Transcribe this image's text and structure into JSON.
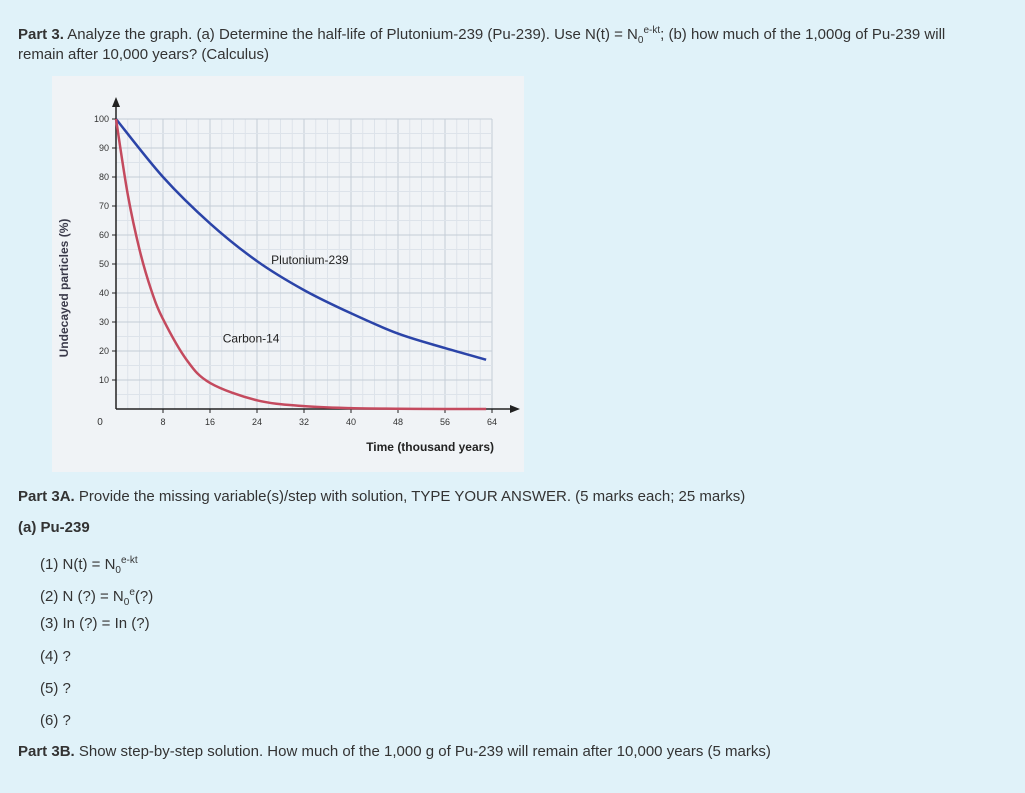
{
  "part3": {
    "label": "Part 3.",
    "text_a": " Analyze the graph. (a) Determine the half-life of Plutonium-239 (Pu-239). Use N(t) = N",
    "sub0": "0",
    "sup_ekt": "e-kt",
    "text_b": "; (b) how much of the 1,000g of Pu-239 will",
    "line2": "remain after 10,000 years? (Calculus)"
  },
  "chart_data": {
    "type": "line",
    "ylabel": "Undecayed particles (%)",
    "xlabel": "Time (thousand years)",
    "yticks": [
      "0",
      "10",
      "20",
      "30",
      "40",
      "50",
      "60",
      "70",
      "80",
      "90",
      "100"
    ],
    "xticks": [
      "8",
      "16",
      "24",
      "32",
      "40",
      "48",
      "56",
      "64"
    ],
    "xlim": [
      0,
      64
    ],
    "ylim": [
      0,
      100
    ],
    "grid": true,
    "series": [
      {
        "name": "Plutonium-239",
        "color": "#2b44a8",
        "x": [
          0,
          8,
          16,
          24,
          32,
          40,
          48,
          56,
          63
        ],
        "y": [
          100,
          80,
          64,
          51,
          41,
          33,
          26,
          21,
          17
        ]
      },
      {
        "name": "Carbon-14",
        "color": "#c44a5e",
        "x": [
          0,
          2,
          4,
          6,
          8,
          12,
          16,
          24,
          32,
          40,
          48,
          56,
          63
        ],
        "y": [
          100,
          74,
          55,
          41,
          31,
          17,
          9,
          3,
          1,
          0.3,
          0.1,
          0,
          0
        ]
      }
    ],
    "annotations": [
      {
        "text": "Plutonium-239",
        "x": 33,
        "y": 50
      },
      {
        "text": "Carbon-14",
        "x": 23,
        "y": 23
      }
    ]
  },
  "part3a": {
    "label": "Part 3A.",
    "text": " Provide the missing variable(s)/step with solution, TYPE YOUR ANSWER. (5 marks each; 25 marks)"
  },
  "a_heading": "(a) Pu-239",
  "steps": {
    "s1_a": "(1) N(t) = N",
    "s1_sub": "0",
    "s1_sup": "e-kt",
    "s2_a": "(2) N (?) = N",
    "s2_sub": "0",
    "s2_sup": "e",
    "s2_b": "(?)",
    "s3": "(3) In (?) = In (?)",
    "s4": "(4) ?",
    "s5": "(5) ?",
    "s6": "(6) ?"
  },
  "part3b": {
    "label": "Part 3B.",
    "text": " Show step-by-step solution.  How much of the 1,000 g of Pu-239 will remain after 10,000 years (5 marks)"
  }
}
